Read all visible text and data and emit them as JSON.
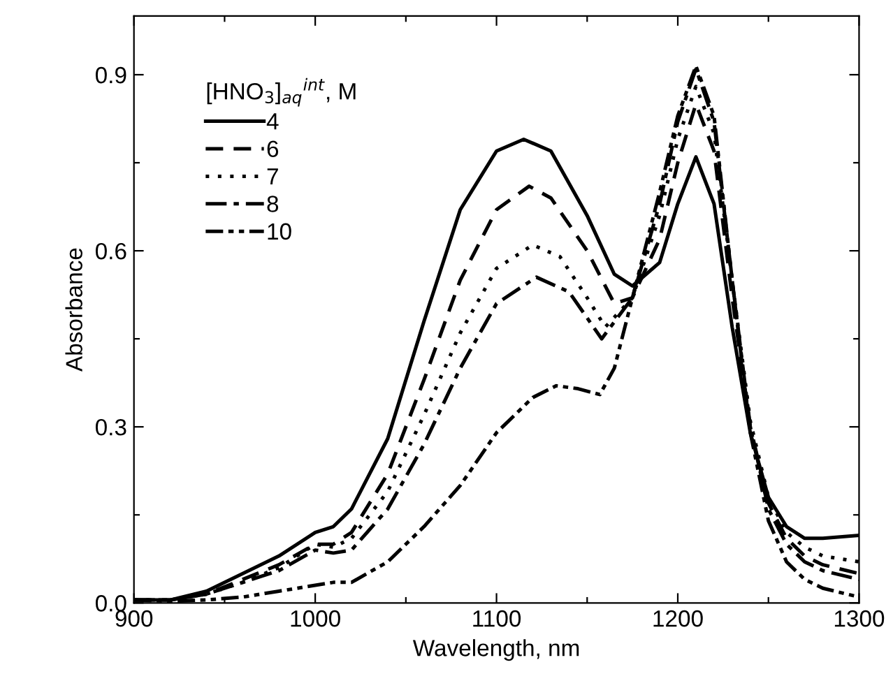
{
  "chart_data": {
    "type": "line",
    "xlabel": "Wavelength, nm",
    "ylabel": "Absorbance",
    "legend_title": "[HNO$_{3}$]$_{aq}$$^{int}$, M",
    "legend": "top left",
    "grid": false,
    "marker": "none",
    "xlim": [
      900,
      1300
    ],
    "ylim": [
      0,
      1.0
    ],
    "xticks": [
      900,
      {
        "value": 950,
        "label": null
      },
      1000,
      {
        "value": 1050,
        "label": null
      },
      1100,
      {
        "value": 1150,
        "label": null
      },
      1200,
      {
        "value": 1250,
        "label": null
      },
      1300
    ],
    "yticks": [
      {
        "value": 0,
        "label": "0.0"
      },
      {
        "value": 0.15,
        "label": null
      },
      {
        "value": 0.3,
        "label": "0.3"
      },
      {
        "value": 0.45,
        "label": null
      },
      {
        "value": 0.6,
        "label": "0.6"
      },
      {
        "value": 0.75,
        "label": null
      },
      {
        "value": 0.9,
        "label": "0.9"
      }
    ],
    "series": [
      {
        "name": "4",
        "color": "#000000",
        "line_style": "solid",
        "x": [
          900,
          920,
          940,
          960,
          980,
          1000,
          1010,
          1020,
          1040,
          1060,
          1080,
          1100,
          1115,
          1130,
          1150,
          1165,
          1175,
          1190,
          1200,
          1210,
          1220,
          1230,
          1240,
          1250,
          1260,
          1270,
          1280,
          1300
        ],
        "values": [
          0.005,
          0.005,
          0.02,
          0.05,
          0.08,
          0.12,
          0.13,
          0.16,
          0.28,
          0.48,
          0.67,
          0.77,
          0.79,
          0.77,
          0.66,
          0.56,
          0.54,
          0.58,
          0.68,
          0.76,
          0.68,
          0.47,
          0.29,
          0.18,
          0.13,
          0.11,
          0.11,
          0.115
        ]
      },
      {
        "name": "6",
        "color": "#000000",
        "line_style": "dashed",
        "x": [
          900,
          920,
          940,
          960,
          980,
          1000,
          1010,
          1020,
          1040,
          1060,
          1080,
          1100,
          1118,
          1130,
          1150,
          1165,
          1175,
          1190,
          1200,
          1210,
          1220,
          1230,
          1240,
          1250,
          1260,
          1270,
          1280,
          1300
        ],
        "values": [
          0.005,
          0.005,
          0.015,
          0.04,
          0.065,
          0.1,
          0.1,
          0.12,
          0.22,
          0.38,
          0.55,
          0.67,
          0.71,
          0.69,
          0.6,
          0.51,
          0.52,
          0.62,
          0.75,
          0.85,
          0.77,
          0.52,
          0.3,
          0.17,
          0.11,
          0.08,
          0.065,
          0.05
        ]
      },
      {
        "name": "7",
        "color": "#000000",
        "line_style": "dotted",
        "x": [
          900,
          920,
          940,
          960,
          980,
          1000,
          1010,
          1020,
          1040,
          1060,
          1080,
          1100,
          1120,
          1135,
          1150,
          1160,
          1175,
          1190,
          1200,
          1210,
          1220,
          1230,
          1240,
          1250,
          1260,
          1270,
          1280,
          1300
        ],
        "values": [
          0.005,
          0.005,
          0.015,
          0.035,
          0.06,
          0.1,
          0.095,
          0.11,
          0.19,
          0.32,
          0.46,
          0.57,
          0.61,
          0.59,
          0.52,
          0.47,
          0.52,
          0.66,
          0.79,
          0.88,
          0.8,
          0.55,
          0.31,
          0.18,
          0.12,
          0.095,
          0.08,
          0.07
        ]
      },
      {
        "name": "8",
        "color": "#000000",
        "line_style": "dashdot",
        "x": [
          900,
          920,
          940,
          960,
          980,
          1000,
          1010,
          1020,
          1040,
          1060,
          1080,
          1100,
          1122,
          1140,
          1158,
          1175,
          1190,
          1200,
          1210,
          1220,
          1230,
          1240,
          1250,
          1260,
          1270,
          1280,
          1300
        ],
        "values": [
          0.005,
          0.005,
          0.015,
          0.035,
          0.055,
          0.09,
          0.085,
          0.09,
          0.16,
          0.27,
          0.4,
          0.51,
          0.555,
          0.53,
          0.45,
          0.52,
          0.68,
          0.82,
          0.91,
          0.82,
          0.55,
          0.3,
          0.16,
          0.1,
          0.07,
          0.055,
          0.04
        ]
      },
      {
        "name": "10",
        "color": "#000000",
        "line_style": "dashdotdot",
        "x": [
          900,
          920,
          940,
          960,
          980,
          1000,
          1010,
          1020,
          1040,
          1060,
          1080,
          1100,
          1120,
          1133,
          1145,
          1157,
          1165,
          1175,
          1190,
          1200,
          1210,
          1220,
          1230,
          1240,
          1250,
          1260,
          1270,
          1280,
          1300
        ],
        "values": [
          0.005,
          0.003,
          0.005,
          0.01,
          0.02,
          0.03,
          0.035,
          0.035,
          0.07,
          0.13,
          0.2,
          0.29,
          0.35,
          0.37,
          0.365,
          0.355,
          0.4,
          0.52,
          0.7,
          0.83,
          0.915,
          0.83,
          0.55,
          0.29,
          0.14,
          0.07,
          0.04,
          0.025,
          0.01
        ]
      }
    ]
  }
}
